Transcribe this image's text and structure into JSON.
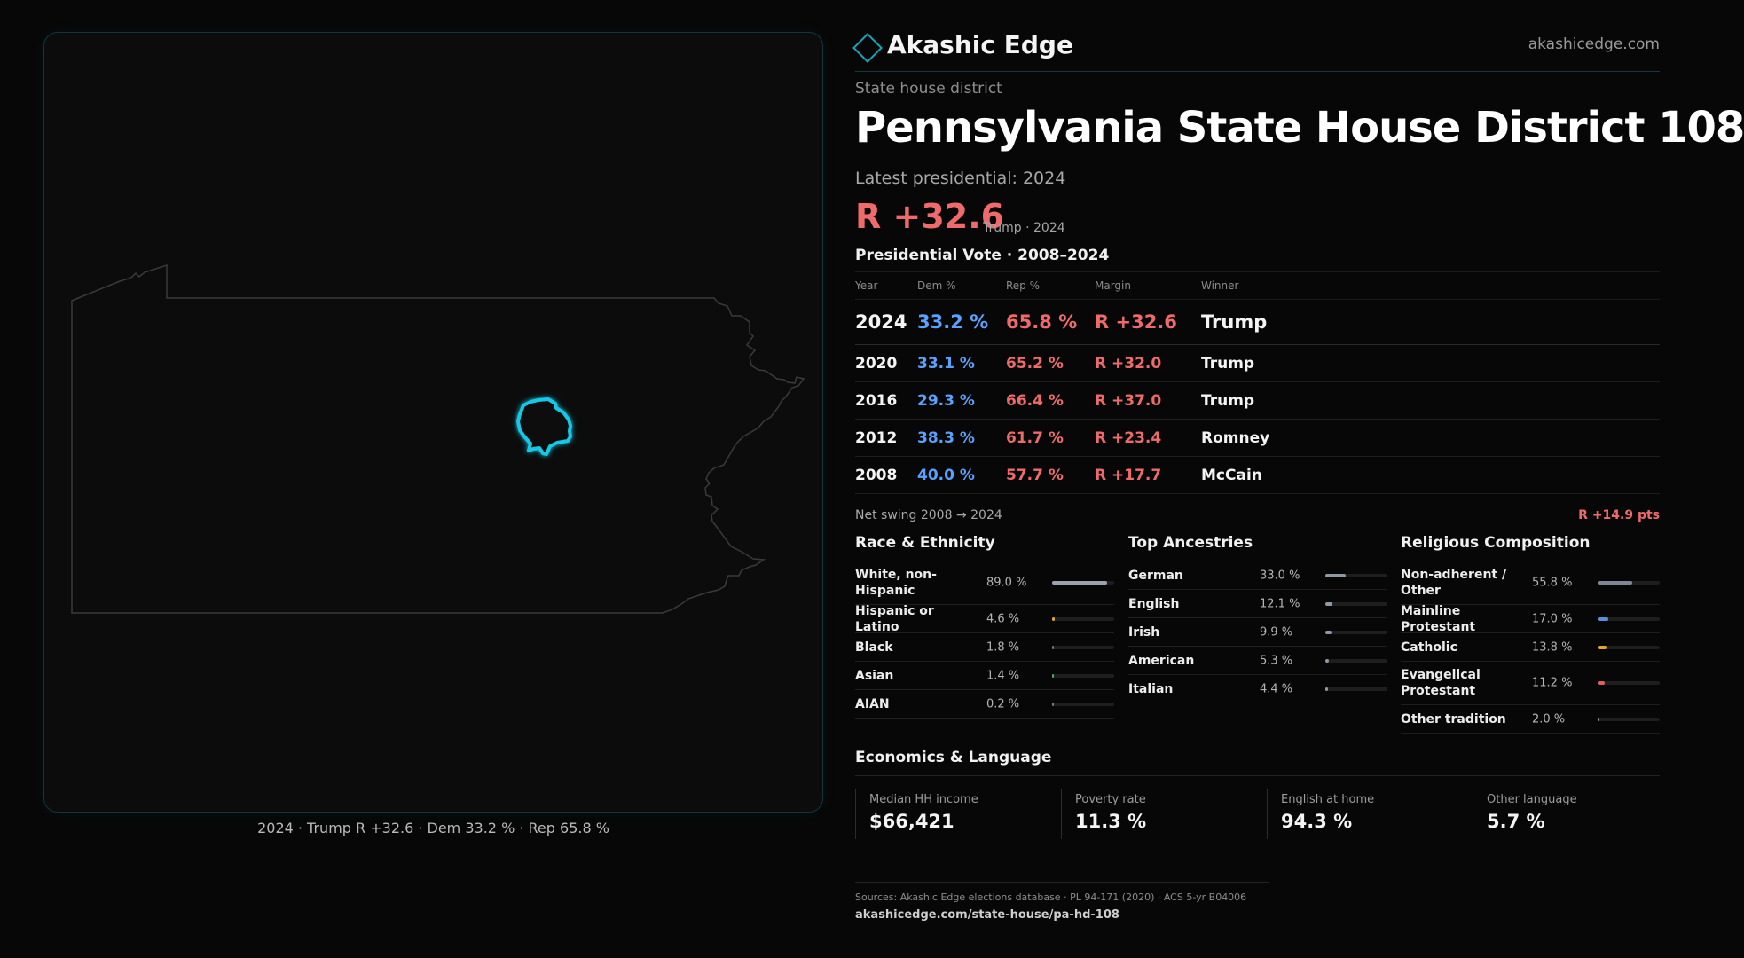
{
  "brand": {
    "name": "Akashic Edge",
    "url": "akashicedge.com"
  },
  "district": {
    "kind": "State house district",
    "title": "Pennsylvania State House District 108"
  },
  "latest": {
    "label": "Latest presidential: 2024",
    "margin": "R +32.6",
    "detail": "Trump · 2024"
  },
  "map": {
    "caption": "2024 · Trump R +32.6 · Dem 33.2 % · Rep 65.8 %",
    "highlight_color": "#19c8e6",
    "state_outline_color": "#3a3a3a"
  },
  "presidential": {
    "title": "Presidential Vote · 2008–2024",
    "headers": {
      "year": "Year",
      "dem": "Dem %",
      "rep": "Rep %",
      "margin": "Margin",
      "winner": "Winner"
    },
    "rows": [
      {
        "year": "2024",
        "dem": "33.2 %",
        "rep": "65.8 %",
        "margin": "R +32.6",
        "winner": "Trump"
      },
      {
        "year": "2020",
        "dem": "33.1 %",
        "rep": "65.2 %",
        "margin": "R +32.0",
        "winner": "Trump"
      },
      {
        "year": "2016",
        "dem": "29.3 %",
        "rep": "66.4 %",
        "margin": "R +37.0",
        "winner": "Trump"
      },
      {
        "year": "2012",
        "dem": "38.3 %",
        "rep": "61.7 %",
        "margin": "R +23.4",
        "winner": "Romney"
      },
      {
        "year": "2008",
        "dem": "40.0 %",
        "rep": "57.7 %",
        "margin": "R +17.7",
        "winner": "McCain"
      }
    ],
    "swing_label": "Net swing 2008 → 2024",
    "swing_value": "R +14.9 pts"
  },
  "race": {
    "title": "Race & Ethnicity",
    "items": [
      {
        "label": "White, non-Hispanic",
        "value": "89.0 %",
        "share": 89.0,
        "color": "#9aa3ad"
      },
      {
        "label": "Hispanic or Latino",
        "value": "4.6 %",
        "share": 4.6,
        "color": "#e0a82a"
      },
      {
        "label": "Black",
        "value": "1.8 %",
        "share": 1.8,
        "color": "#7a7a7a"
      },
      {
        "label": "Asian",
        "value": "1.4 %",
        "share": 1.4,
        "color": "#3fae6a"
      },
      {
        "label": "AIAN",
        "value": "0.2 %",
        "share": 0.2,
        "color": "#7a7a7a"
      }
    ]
  },
  "ancestry": {
    "title": "Top Ancestries",
    "items": [
      {
        "label": "German",
        "value": "33.0 %",
        "share": 33.0,
        "color": "#8f98a3"
      },
      {
        "label": "English",
        "value": "12.1 %",
        "share": 12.1,
        "color": "#8f98a3"
      },
      {
        "label": "Irish",
        "value": "9.9 %",
        "share": 9.9,
        "color": "#8f98a3"
      },
      {
        "label": "American",
        "value": "5.3 %",
        "share": 5.3,
        "color": "#8f98a3"
      },
      {
        "label": "Italian",
        "value": "4.4 %",
        "share": 4.4,
        "color": "#8f98a3"
      }
    ]
  },
  "religion": {
    "title": "Religious Composition",
    "items": [
      {
        "label": "Non-adherent / Other",
        "value": "55.8 %",
        "share": 55.8,
        "color": "#7f8894"
      },
      {
        "label": "Mainline Protestant",
        "value": "17.0 %",
        "share": 17.0,
        "color": "#5b8fd6"
      },
      {
        "label": "Catholic",
        "value": "13.8 %",
        "share": 13.8,
        "color": "#e0a82a"
      },
      {
        "label": "Evangelical Protestant",
        "value": "11.2 %",
        "share": 11.2,
        "color": "#e06060"
      },
      {
        "label": "Other tradition",
        "value": "2.0 %",
        "share": 2.0,
        "color": "#9a9a9a"
      }
    ]
  },
  "economics": {
    "title": "Economics & Language",
    "cells": [
      {
        "label": "Median HH income",
        "value": "$66,421"
      },
      {
        "label": "Poverty rate",
        "value": "11.3 %"
      },
      {
        "label": "English at home",
        "value": "94.3 %"
      },
      {
        "label": "Other language",
        "value": "5.7 %"
      }
    ]
  },
  "sources": {
    "text": "Sources: Akashic Edge elections database · PL 94-171 (2020) · ACS 5-yr B04006",
    "url": "akashicedge.com/state-house/pa-hd-108"
  }
}
